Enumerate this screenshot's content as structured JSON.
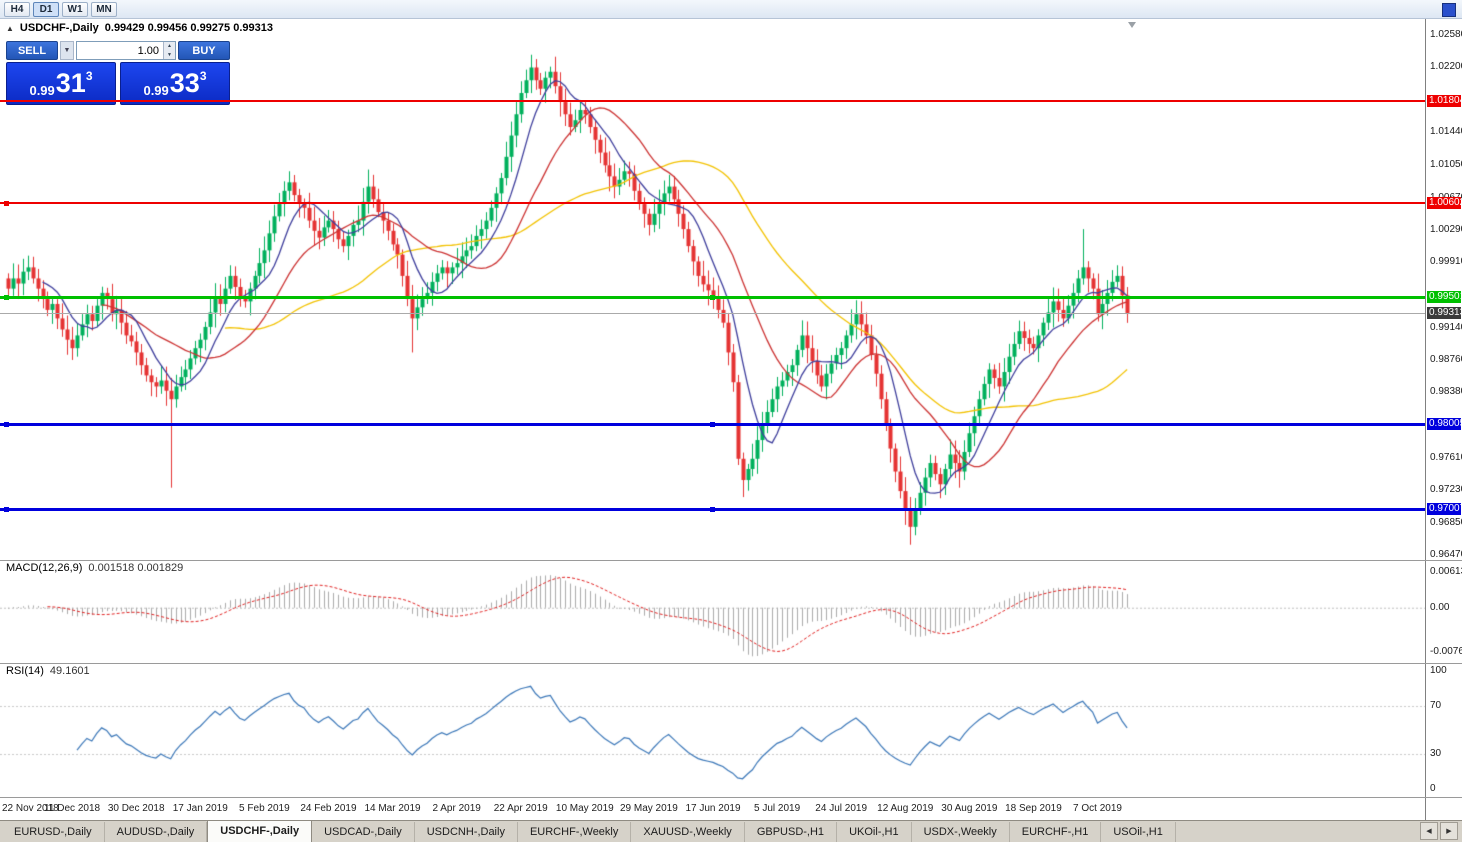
{
  "toolbar": {
    "timeframes": [
      {
        "label": "H4",
        "active": false
      },
      {
        "label": "D1",
        "active": true
      },
      {
        "label": "W1",
        "active": false
      },
      {
        "label": "MN",
        "active": false
      }
    ]
  },
  "icons": {
    "collapse": "▲",
    "dropdown": "▼",
    "spin_up": "▲",
    "spin_down": "▼",
    "tab_prev": "◀",
    "tab_next": "▶"
  },
  "chart_header": {
    "symbol": "USDCHF-,Daily",
    "ohlc": "0.99429 0.99456 0.99275 0.99313"
  },
  "trade_panel": {
    "sell_label": "SELL",
    "buy_label": "BUY",
    "volume": "1.00",
    "sell_prefix": "0.99",
    "sell_big": "31",
    "sell_sup": "3",
    "buy_prefix": "0.99",
    "buy_big": "33",
    "buy_sup": "3"
  },
  "price_axis": {
    "labels": [
      "1.02580",
      "1.02200",
      "1.01440",
      "1.01050",
      "1.00670",
      "1.00290",
      "0.99910",
      "0.99140",
      "0.98760",
      "0.98380",
      "0.97610",
      "0.97230",
      "0.96850",
      "0.96470"
    ]
  },
  "macd": {
    "title": "MACD(12,26,9)",
    "values": "0.001518 0.001829",
    "axis": [
      "0.00613",
      "0.00",
      "-0.00761"
    ]
  },
  "rsi": {
    "title": "RSI(14)",
    "value": "49.1601",
    "axis": [
      "100",
      "70",
      "30",
      "0"
    ]
  },
  "date_axis": [
    "22 Nov 2018",
    "11 Dec 2018",
    "30 Dec 2018",
    "17 Jan 2019",
    "5 Feb 2019",
    "24 Feb 2019",
    "14 Mar 2019",
    "2 Apr 2019",
    "22 Apr 2019",
    "10 May 2019",
    "29 May 2019",
    "17 Jun 2019",
    "5 Jul 2019",
    "24 Jul 2019",
    "12 Aug 2019",
    "30 Aug 2019",
    "18 Sep 2019",
    "7 Oct 2019"
  ],
  "tabs": {
    "items": [
      "EURUSD-,Daily",
      "AUDUSD-,Daily",
      "USDCHF-,Daily",
      "USDCAD-,Daily",
      "USDCNH-,Daily",
      "EURCHF-,Weekly",
      "XAUUSD-,Weekly",
      "GBPUSD-,H1",
      "UKOil-,H1",
      "USDX-,Weekly",
      "EURCHF-,H1",
      "USOil-,H1"
    ],
    "active_index": 2
  },
  "chart_data": {
    "type": "candlestick",
    "symbol": "USDCHF",
    "timeframe": "Daily",
    "title": "USDCHF-,Daily",
    "ohlc_display": {
      "open": "0.99429",
      "high": "0.99456",
      "low": "0.99275",
      "close": "0.99313"
    },
    "price_range": [
      0.9641,
      1.0277
    ],
    "up_color": "#00b05c",
    "down_color": "#e53333",
    "closes": [
      0.996,
      0.9972,
      0.9966,
      0.998,
      0.9985,
      0.9972,
      0.996,
      0.9948,
      0.9935,
      0.9942,
      0.9925,
      0.9912,
      0.99,
      0.989,
      0.9905,
      0.9918,
      0.993,
      0.9922,
      0.994,
      0.9955,
      0.9948,
      0.993,
      0.9935,
      0.992,
      0.9905,
      0.9898,
      0.9885,
      0.987,
      0.9858,
      0.985,
      0.9845,
      0.9852,
      0.984,
      0.983,
      0.9845,
      0.9856,
      0.9865,
      0.9878,
      0.989,
      0.99,
      0.9915,
      0.9932,
      0.995,
      0.9942,
      0.996,
      0.9975,
      0.9962,
      0.995,
      0.9945,
      0.996,
      0.9975,
      0.999,
      1.0005,
      1.0025,
      1.0045,
      1.006,
      1.0075,
      1.0085,
      1.007,
      1.006,
      1.0055,
      1.004,
      1.0028,
      1.002,
      1.0032,
      1.004,
      1.003,
      1.0018,
      1.001,
      1.0022,
      1.0035,
      1.004,
      1.0062,
      1.008,
      1.0065,
      1.005,
      1.004,
      1.0028,
      1.0012,
      1.0,
      0.9975,
      0.9948,
      0.9925,
      0.9938,
      0.9948,
      0.9955,
      0.9968,
      0.9978,
      0.9985,
      0.9978,
      0.9985,
      0.999,
      0.9998,
      1.0005,
      1.001,
      1.0022,
      1.003,
      1.004,
      1.0055,
      1.0072,
      1.009,
      1.0115,
      1.014,
      1.0165,
      1.019,
      1.0205,
      1.022,
      1.0205,
      1.0195,
      1.0208,
      1.0215,
      1.0198,
      1.018,
      1.0165,
      1.015,
      1.0158,
      1.017,
      1.0165,
      1.015,
      1.0135,
      1.012,
      1.0105,
      1.0092,
      1.008,
      1.0088,
      1.0098,
      1.0095,
      1.0075,
      1.006,
      1.0048,
      1.0035,
      1.0048,
      1.006,
      1.0072,
      1.008,
      1.0065,
      1.0048,
      1.003,
      1.001,
      0.9992,
      0.9975,
      0.9965,
      0.9958,
      0.995,
      0.9935,
      0.992,
      0.9885,
      0.985,
      0.976,
      0.9735,
      0.9748,
      0.976,
      0.9782,
      0.98,
      0.9815,
      0.983,
      0.9845,
      0.9852,
      0.9862,
      0.987,
      0.9888,
      0.9905,
      0.989,
      0.9875,
      0.9858,
      0.9845,
      0.986,
      0.9872,
      0.9882,
      0.989,
      0.9905,
      0.9918,
      0.993,
      0.9918,
      0.9905,
      0.9882,
      0.986,
      0.983,
      0.98,
      0.9772,
      0.9745,
      0.9722,
      0.97,
      0.968,
      0.97,
      0.972,
      0.9738,
      0.9755,
      0.9742,
      0.973,
      0.9748,
      0.9765,
      0.9755,
      0.9745,
      0.9768,
      0.979,
      0.981,
      0.983,
      0.9848,
      0.9865,
      0.9855,
      0.9845,
      0.9862,
      0.988,
      0.9895,
      0.991,
      0.9902,
      0.9895,
      0.989,
      0.9905,
      0.992,
      0.9932,
      0.9945,
      0.9935,
      0.9925,
      0.994,
      0.9955,
      0.9972,
      0.9985,
      0.9972,
      0.996,
      0.993,
      0.9942,
      0.9955,
      0.9968,
      0.9975,
      0.9952,
      0.9931
    ],
    "extremes": {
      "33": {
        "l": 0.9726
      },
      "57": {
        "h": 1.0098
      },
      "73": {
        "h": 1.01
      },
      "82": {
        "l": 0.9885
      },
      "106": {
        "h": 1.0235
      },
      "149": {
        "l": 0.9715
      },
      "183": {
        "l": 0.9659
      },
      "193": {
        "l": 0.9726
      },
      "218": {
        "h": 1.003
      }
    },
    "moving_averages": [
      {
        "period": 45,
        "color": "#f2c200"
      },
      {
        "period": 20,
        "color": "#cc3333"
      },
      {
        "period": 8,
        "color": "#3e3e9c"
      }
    ],
    "hlines": [
      {
        "price": 1.01804,
        "label": "1.01804",
        "color": "#ee0000",
        "thickness": 2,
        "handles": []
      },
      {
        "price": 1.00602,
        "label": "1.00602",
        "color": "#ee0000",
        "thickness": 2,
        "handles": [
          4
        ]
      },
      {
        "price": 0.99501,
        "label": "0.99501",
        "color": "#00c000",
        "thickness": 3,
        "handles": [
          4,
          710
        ]
      },
      {
        "price": 0.98005,
        "label": "0.98005",
        "color": "#0000dd",
        "thickness": 3,
        "handles": [
          4,
          710
        ]
      },
      {
        "price": 0.97007,
        "label": "0.97007",
        "color": "#0000dd",
        "thickness": 3,
        "handles": [
          4,
          710
        ]
      }
    ],
    "current_price": {
      "value": 0.99313,
      "label": "0.99313"
    },
    "macd": {
      "params": [
        12,
        26,
        9
      ],
      "range": [
        -0.0095,
        0.0082
      ],
      "hist_color": "#ababab",
      "signal_color": "#e02020"
    },
    "rsi": {
      "period": 14,
      "levels": [
        70,
        30
      ],
      "color": "#3b77b8",
      "range": [
        0,
        100
      ]
    }
  }
}
